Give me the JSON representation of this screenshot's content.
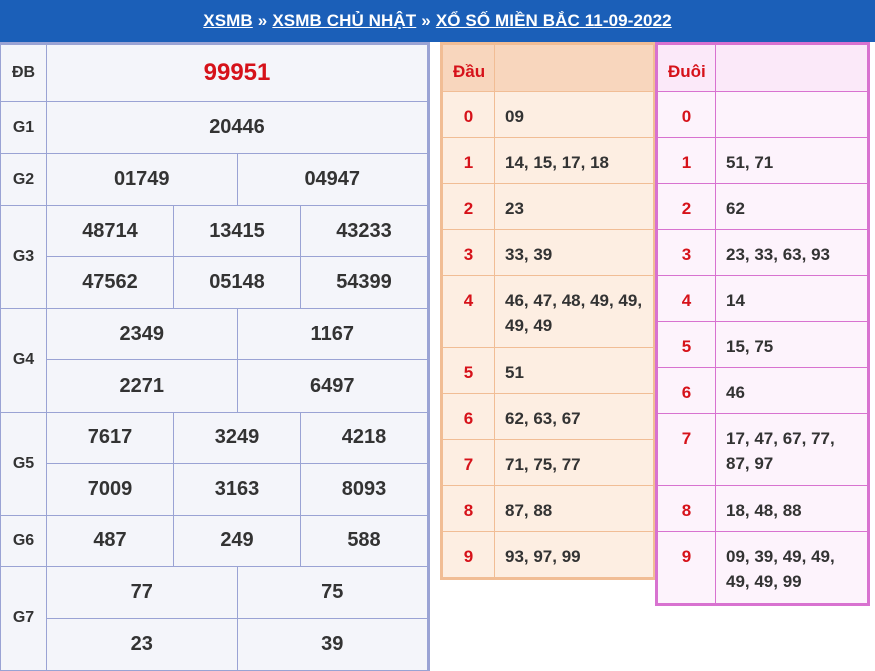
{
  "breadcrumb": {
    "item1": "XSMB",
    "sep": "»",
    "item2": "XSMB CHỦ NHẬT",
    "item3": "XỔ SỐ MIỀN BẮC 11-09-2022"
  },
  "results": {
    "db": {
      "label": "ĐB",
      "numbers": [
        "99951"
      ]
    },
    "g1": {
      "label": "G1",
      "numbers": [
        "20446"
      ]
    },
    "g2": {
      "label": "G2",
      "numbers": [
        "01749",
        "04947"
      ]
    },
    "g3": {
      "label": "G3",
      "numbers": [
        "48714",
        "13415",
        "43233",
        "47562",
        "05148",
        "54399"
      ]
    },
    "g4": {
      "label": "G4",
      "numbers": [
        "2349",
        "1167",
        "2271",
        "6497"
      ]
    },
    "g5": {
      "label": "G5",
      "numbers": [
        "7617",
        "3249",
        "4218",
        "7009",
        "3163",
        "8093"
      ]
    },
    "g6": {
      "label": "G6",
      "numbers": [
        "487",
        "249",
        "588"
      ]
    },
    "g7": {
      "label": "G7",
      "numbers": [
        "77",
        "75",
        "23",
        "39"
      ]
    }
  },
  "dau": {
    "header": "Đầu",
    "rows": [
      {
        "digit": "0",
        "values": "09"
      },
      {
        "digit": "1",
        "values": "14, 15, 17, 18"
      },
      {
        "digit": "2",
        "values": "23"
      },
      {
        "digit": "3",
        "values": "33, 39"
      },
      {
        "digit": "4",
        "values": "46, 47, 48, 49, 49, 49, 49"
      },
      {
        "digit": "5",
        "values": "51"
      },
      {
        "digit": "6",
        "values": "62, 63, 67"
      },
      {
        "digit": "7",
        "values": "71, 75, 77"
      },
      {
        "digit": "8",
        "values": "87, 88"
      },
      {
        "digit": "9",
        "values": "93, 97, 99"
      }
    ]
  },
  "duoi": {
    "header": "Đuôi",
    "rows": [
      {
        "digit": "0",
        "values": ""
      },
      {
        "digit": "1",
        "values": "51, 71"
      },
      {
        "digit": "2",
        "values": "62"
      },
      {
        "digit": "3",
        "values": "23, 33, 63, 93"
      },
      {
        "digit": "4",
        "values": "14"
      },
      {
        "digit": "5",
        "values": "15, 75"
      },
      {
        "digit": "6",
        "values": "46"
      },
      {
        "digit": "7",
        "values": "17, 47, 67, 77, 87, 97"
      },
      {
        "digit": "8",
        "values": "18, 48, 88"
      },
      {
        "digit": "9",
        "values": "09, 39, 49, 49, 49, 49, 99"
      }
    ]
  },
  "colors": {
    "header_bg": "#1b5fb8",
    "special_prize": "#d6121a",
    "dau_border": "#f1bd95",
    "duoi_border": "#d872d0"
  }
}
